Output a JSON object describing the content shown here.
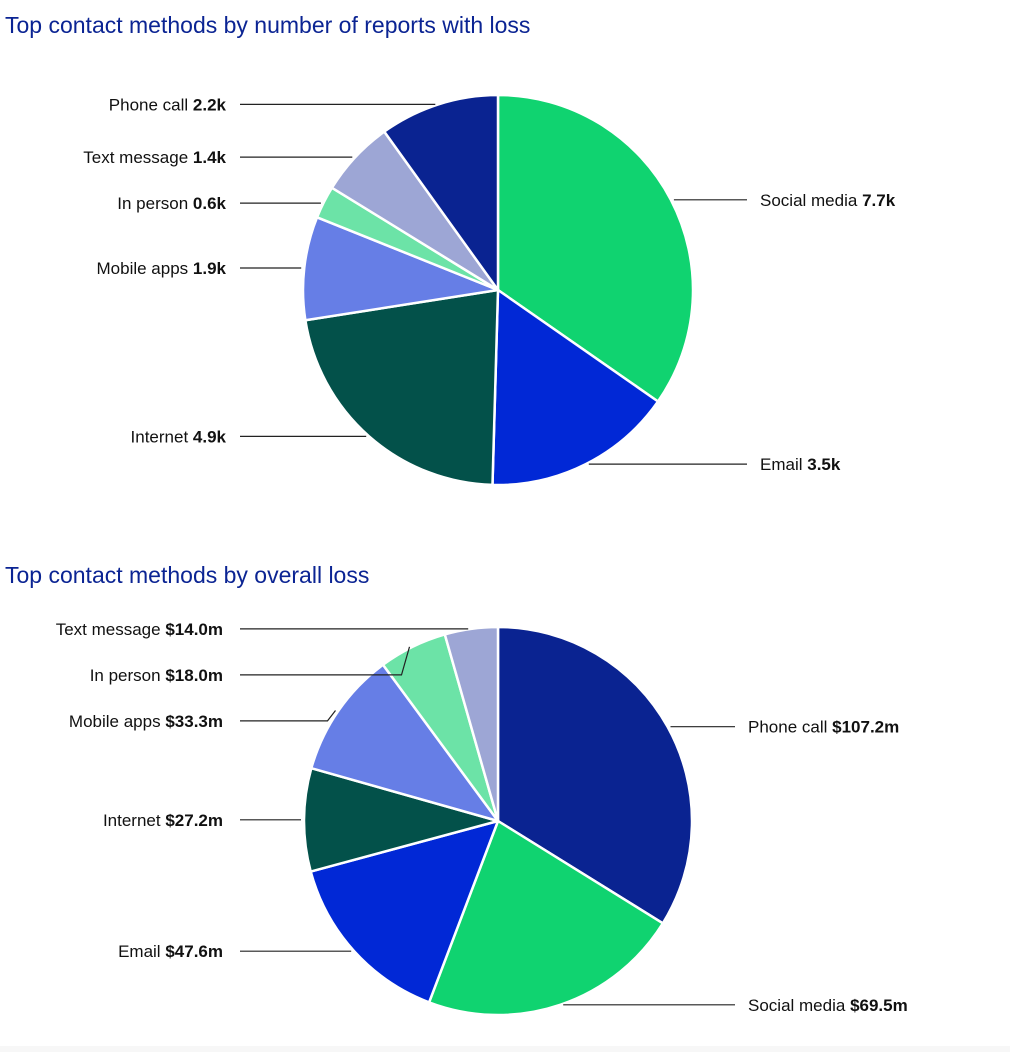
{
  "charts": [
    {
      "title": "Top contact methods by number of reports with loss",
      "chart_data": {
        "type": "pie",
        "title": "Top contact methods by number of reports with loss",
        "unit": "reports",
        "slices": [
          {
            "name": "Social media",
            "value": 7.7,
            "label_value": "7.7k",
            "color": "#10d370",
            "side": "right"
          },
          {
            "name": "Email",
            "value": 3.5,
            "label_value": "3.5k",
            "color": "#0128d6",
            "side": "right"
          },
          {
            "name": "Internet",
            "value": 4.9,
            "label_value": "4.9k",
            "color": "#03514a",
            "side": "left"
          },
          {
            "name": "Mobile apps",
            "value": 1.9,
            "label_value": "1.9k",
            "color": "#667ee6",
            "side": "left"
          },
          {
            "name": "In person",
            "value": 0.6,
            "label_value": "0.6k",
            "color": "#6ce3a7",
            "side": "left"
          },
          {
            "name": "Text message",
            "value": 1.4,
            "label_value": "1.4k",
            "color": "#9da6d5",
            "side": "left"
          },
          {
            "name": "Phone call",
            "value": 2.2,
            "label_value": "2.2k",
            "color": "#0a2391",
            "side": "left"
          }
        ]
      }
    },
    {
      "title": "Top contact methods by overall loss",
      "chart_data": {
        "type": "pie",
        "title": "Top contact methods by overall loss",
        "unit": "USD millions",
        "slices": [
          {
            "name": "Phone call",
            "value": 107.2,
            "label_value": "$107.2m",
            "color": "#0a2391",
            "side": "right"
          },
          {
            "name": "Social media",
            "value": 69.5,
            "label_value": "$69.5m",
            "color": "#10d370",
            "side": "right"
          },
          {
            "name": "Email",
            "value": 47.6,
            "label_value": "$47.6m",
            "color": "#0128d6",
            "side": "left"
          },
          {
            "name": "Internet",
            "value": 27.2,
            "label_value": "$27.2m",
            "color": "#03514a",
            "side": "left"
          },
          {
            "name": "Mobile apps",
            "value": 33.3,
            "label_value": "$33.3m",
            "color": "#667ee6",
            "side": "left"
          },
          {
            "name": "In person",
            "value": 18.0,
            "label_value": "$18.0m",
            "color": "#6ce3a7",
            "side": "left"
          },
          {
            "name": "Text message",
            "value": 14.0,
            "label_value": "$14.0m",
            "color": "#9da6d5",
            "side": "left"
          }
        ]
      }
    }
  ]
}
